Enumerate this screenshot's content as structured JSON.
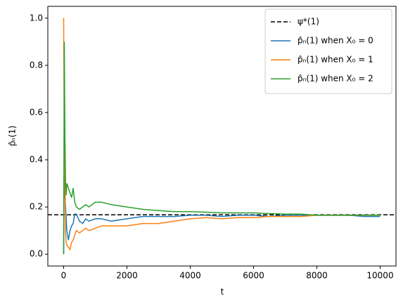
{
  "chart_data": {
    "type": "line",
    "x_label": "t",
    "y_label": "p̂ₙ(1)",
    "x": [
      0,
      20,
      40,
      60,
      80,
      100,
      150,
      200,
      250,
      300,
      350,
      400,
      500,
      600,
      700,
      800,
      1000,
      1200,
      1500,
      2000,
      2500,
      3000,
      3500,
      4000,
      4500,
      5000,
      5500,
      6000,
      6500,
      7000,
      7500,
      8000,
      8500,
      9000,
      9500,
      10000
    ],
    "reference": {
      "name": "ψ*(1)",
      "value": 0.167,
      "color": "#000000",
      "style": "dashed"
    },
    "series": [
      {
        "name": "p̂ₙ(1) when X₀ = 0",
        "color": "#1f77b4",
        "values": [
          0,
          0.5,
          0.25,
          0.2,
          0.15,
          0.1,
          0.06,
          0.1,
          0.12,
          0.13,
          0.17,
          0.17,
          0.14,
          0.13,
          0.15,
          0.14,
          0.15,
          0.15,
          0.14,
          0.15,
          0.16,
          0.16,
          0.16,
          0.165,
          0.165,
          0.16,
          0.165,
          0.165,
          0.16,
          0.165,
          0.165,
          0.165,
          0.165,
          0.165,
          0.16,
          0.16
        ]
      },
      {
        "name": "p̂ₙ(1) when X₀ = 1",
        "color": "#ff7f0e",
        "values": [
          1.0,
          0.5,
          0.33,
          0.1,
          0.05,
          0.04,
          0.03,
          0.02,
          0.05,
          0.06,
          0.08,
          0.1,
          0.09,
          0.1,
          0.11,
          0.1,
          0.11,
          0.12,
          0.12,
          0.12,
          0.13,
          0.13,
          0.14,
          0.15,
          0.155,
          0.15,
          0.155,
          0.155,
          0.16,
          0.16,
          0.16,
          0.165,
          0.165,
          0.165,
          0.165,
          0.165
        ]
      },
      {
        "name": "p̂ₙ(1) when X₀ = 2",
        "color": "#2ca02c",
        "values": [
          0,
          0.9,
          0.5,
          0.3,
          0.25,
          0.3,
          0.28,
          0.26,
          0.24,
          0.28,
          0.22,
          0.2,
          0.19,
          0.2,
          0.21,
          0.2,
          0.22,
          0.22,
          0.21,
          0.2,
          0.19,
          0.185,
          0.18,
          0.18,
          0.178,
          0.175,
          0.175,
          0.175,
          0.172,
          0.17,
          0.17,
          0.165,
          0.165,
          0.165,
          0.165,
          0.165
        ]
      }
    ],
    "xlim": [
      -500,
      10500
    ],
    "ylim": [
      -0.05,
      1.05
    ],
    "xticks": [
      0,
      2000,
      4000,
      6000,
      8000,
      10000
    ],
    "yticks": [
      {
        "value": 0,
        "label": "0.0"
      },
      0.2,
      0.4,
      0.6,
      0.8,
      {
        "value": 1,
        "label": "1.0"
      }
    ],
    "grid": false,
    "legend": "upper right"
  }
}
